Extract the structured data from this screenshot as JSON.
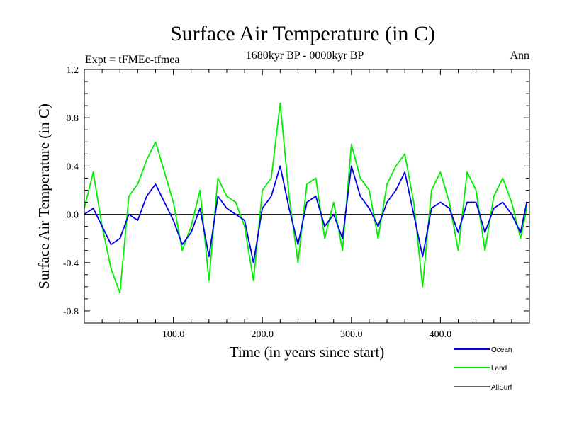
{
  "chart_data": {
    "type": "line",
    "title": "Surface Air Temperature (in C)",
    "subtitle_left": "Expt = tFMEc-tfmea",
    "subtitle_center": "1680kyr BP - 0000kyr BP",
    "subtitle_right": "Ann",
    "xlabel": "Time (in years since start)",
    "ylabel": "Surface Air Temperature (in C)",
    "xlim": [
      0,
      500
    ],
    "ylim": [
      -0.9,
      1.2
    ],
    "x_ticks": [
      100,
      200,
      300,
      400
    ],
    "x_tick_labels": [
      "100.0",
      "200.0",
      "300.0",
      "400.0"
    ],
    "y_ticks": [
      -0.8,
      -0.4,
      0.0,
      0.4,
      0.8,
      1.2
    ],
    "y_tick_labels": [
      "-0.8",
      "-0.4",
      "0.0",
      "0.4",
      "0.8",
      "1.2"
    ],
    "x": [
      0,
      10,
      20,
      30,
      40,
      50,
      60,
      70,
      80,
      90,
      100,
      110,
      120,
      130,
      140,
      150,
      160,
      170,
      180,
      190,
      200,
      210,
      220,
      230,
      240,
      250,
      260,
      270,
      280,
      290,
      300,
      310,
      320,
      330,
      340,
      350,
      360,
      370,
      380,
      390,
      400,
      410,
      420,
      430,
      440,
      450,
      460,
      470,
      480,
      490,
      497
    ],
    "series": [
      {
        "name": "Land",
        "color": "#00ee00",
        "values": [
          0.05,
          0.35,
          -0.1,
          -0.45,
          -0.65,
          0.15,
          0.25,
          0.45,
          0.6,
          0.35,
          0.1,
          -0.3,
          -0.1,
          0.2,
          -0.55,
          0.3,
          0.15,
          0.1,
          -0.1,
          -0.55,
          0.2,
          0.3,
          0.92,
          0.15,
          -0.4,
          0.25,
          0.3,
          -0.2,
          0.1,
          -0.3,
          0.58,
          0.3,
          0.2,
          -0.2,
          0.25,
          0.4,
          0.5,
          0.1,
          -0.6,
          0.2,
          0.35,
          0.1,
          -0.3,
          0.35,
          0.2,
          -0.3,
          0.15,
          0.3,
          0.1,
          -0.2,
          0.05
        ]
      },
      {
        "name": "Ocean",
        "color": "#0000ee",
        "values": [
          0.0,
          0.05,
          -0.1,
          -0.25,
          -0.2,
          0.0,
          -0.05,
          0.15,
          0.25,
          0.1,
          -0.05,
          -0.25,
          -0.15,
          0.05,
          -0.35,
          0.15,
          0.05,
          0.0,
          -0.05,
          -0.4,
          0.05,
          0.15,
          0.4,
          0.05,
          -0.25,
          0.1,
          0.15,
          -0.1,
          0.0,
          -0.2,
          0.4,
          0.15,
          0.05,
          -0.1,
          0.1,
          0.2,
          0.35,
          0.0,
          -0.35,
          0.05,
          0.1,
          0.05,
          -0.15,
          0.1,
          0.1,
          -0.15,
          0.05,
          0.1,
          0.0,
          -0.15,
          0.1
        ]
      },
      {
        "name": "AllSurf",
        "color": "#000000",
        "values": [
          0.0,
          0.05,
          -0.1,
          -0.25,
          -0.2,
          0.0,
          -0.05,
          0.15,
          0.25,
          0.1,
          -0.05,
          -0.25,
          -0.15,
          0.05,
          -0.35,
          0.15,
          0.05,
          0.0,
          -0.05,
          -0.4,
          0.05,
          0.15,
          0.4,
          0.05,
          -0.25,
          0.1,
          0.15,
          -0.1,
          0.0,
          -0.2,
          0.4,
          0.15,
          0.05,
          -0.1,
          0.1,
          0.2,
          0.35,
          0.0,
          -0.35,
          0.05,
          0.1,
          0.05,
          -0.15,
          0.1,
          0.1,
          -0.15,
          0.05,
          0.1,
          0.0,
          -0.15,
          0.1
        ]
      }
    ],
    "legend_order": [
      "Ocean",
      "Land",
      "AllSurf"
    ],
    "legend_position": "bottom-right",
    "zero_line": true
  }
}
